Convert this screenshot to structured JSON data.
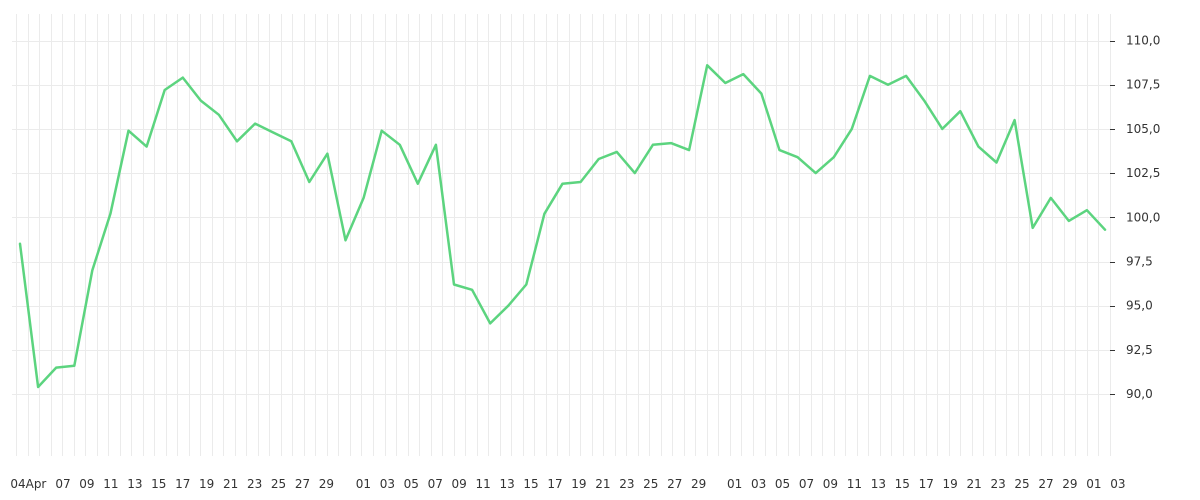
{
  "chart_data": {
    "type": "line",
    "title": "",
    "xlabel": "",
    "ylabel": "",
    "ylim": [
      86.5,
      111.5
    ],
    "y_ticks": [
      90.0,
      92.5,
      95.0,
      97.5,
      100.0,
      102.5,
      105.0,
      107.5,
      110.0
    ],
    "y_tick_labels": [
      "90,0",
      "92,5",
      "95,0",
      "97,5",
      "100,0",
      "102,5",
      "105,0",
      "107,5",
      "110,0"
    ],
    "y_axis_side": "right",
    "grid": true,
    "x_tick_labels": [
      "04",
      "Apr",
      "07",
      "09",
      "11",
      "13",
      "15",
      "17",
      "19",
      "21",
      "23",
      "25",
      "27",
      "29",
      "01",
      "03",
      "05",
      "07",
      "09",
      "11",
      "13",
      "15",
      "17",
      "19",
      "21",
      "23",
      "25",
      "27",
      "29",
      "01",
      "03",
      "05",
      "07",
      "09",
      "11",
      "13",
      "15",
      "17",
      "19",
      "21",
      "23",
      "25",
      "27",
      "29",
      "01",
      "03"
    ],
    "series": [
      {
        "color": "#5cd47f",
        "values": [
          98.5,
          90.4,
          91.5,
          91.6,
          97.0,
          100.2,
          104.9,
          104.0,
          107.2,
          107.9,
          106.6,
          105.8,
          104.3,
          105.3,
          104.8,
          104.3,
          102.0,
          103.6,
          98.7,
          101.1,
          104.9,
          104.1,
          101.9,
          104.1,
          96.2,
          95.9,
          94.0,
          95.0,
          96.2,
          100.2,
          101.9,
          102.0,
          103.3,
          103.7,
          102.5,
          104.1,
          104.2,
          103.8,
          108.6,
          107.6,
          108.1,
          107.0,
          103.8,
          103.4,
          102.5,
          103.4,
          105.0,
          108.0,
          107.5,
          108.0,
          106.6,
          105.0,
          106.0,
          104.0,
          103.1,
          105.5,
          99.4,
          101.1,
          99.8,
          100.4,
          99.3
        ]
      }
    ]
  }
}
